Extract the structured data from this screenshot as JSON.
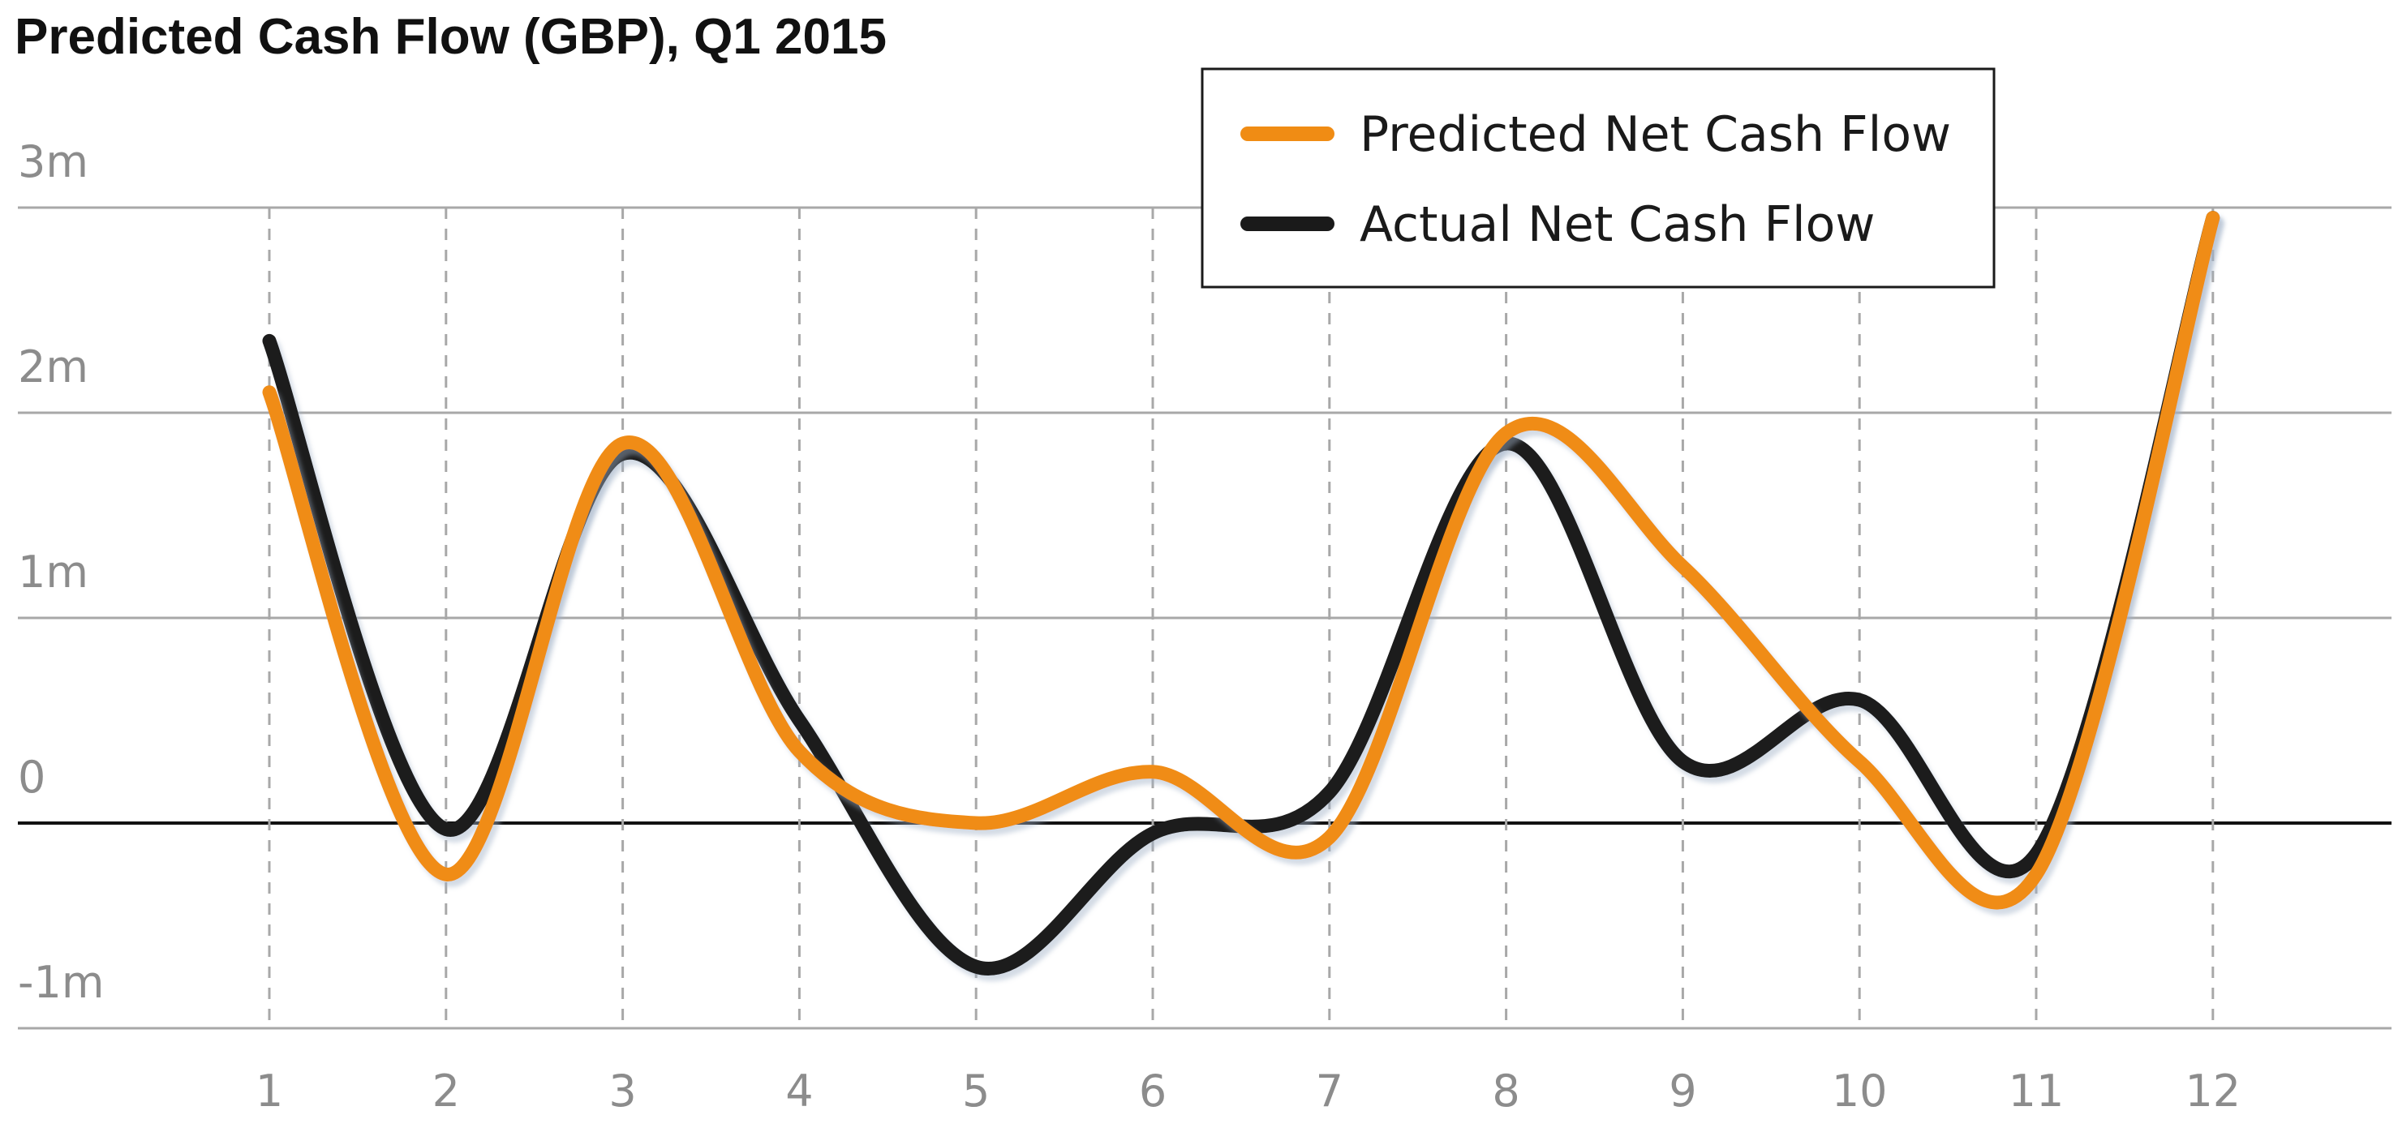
{
  "chart_data": {
    "type": "line",
    "title": "Predicted Cash Flow (GBP), Q1 2015",
    "xlabel": "",
    "ylabel": "",
    "x": [
      1,
      2,
      3,
      4,
      5,
      6,
      7,
      8,
      9,
      10,
      11,
      12
    ],
    "xticks": [
      "1",
      "2",
      "3",
      "4",
      "5",
      "6",
      "7",
      "8",
      "9",
      "10",
      "11",
      "12"
    ],
    "yticks": [
      {
        "value": 3000000,
        "label": "3m"
      },
      {
        "value": 2000000,
        "label": "2m"
      },
      {
        "value": 1000000,
        "label": "1m"
      },
      {
        "value": 0,
        "label": "0"
      },
      {
        "value": -1000000,
        "label": "-1m"
      }
    ],
    "ylim": [
      -1000000,
      3000000
    ],
    "grid": true,
    "legend_position": "top-right",
    "series": [
      {
        "name": "Predicted Net Cash Flow",
        "color": "#f08c14",
        "values": [
          2100000,
          -250000,
          1850000,
          350000,
          0,
          250000,
          -70000,
          1900000,
          1250000,
          300000,
          -250000,
          2950000
        ]
      },
      {
        "name": "Actual Net Cash Flow",
        "color": "#1a1a1a",
        "values": [
          2350000,
          -30000,
          1800000,
          500000,
          -700000,
          -50000,
          150000,
          1850000,
          300000,
          600000,
          -150000,
          2950000
        ]
      }
    ]
  }
}
